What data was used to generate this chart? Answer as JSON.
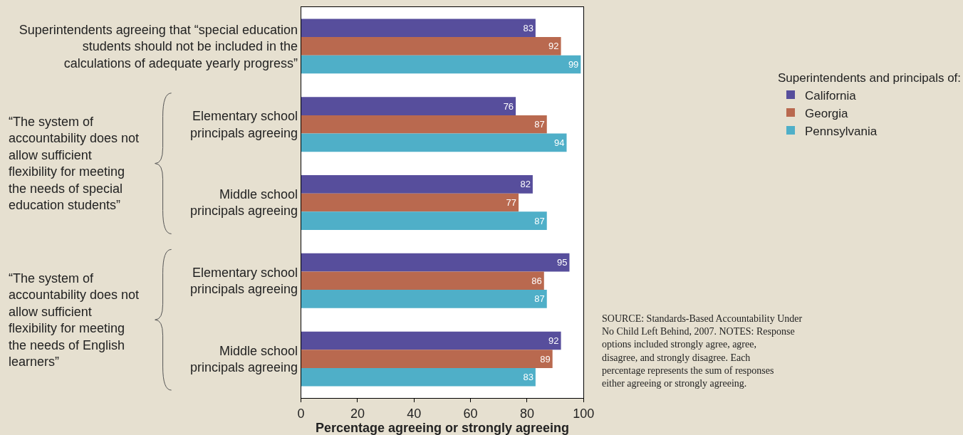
{
  "chart_data": {
    "type": "bar",
    "orientation": "horizontal",
    "xlabel": "Percentage agreeing or strongly agreeing",
    "legend_title": "Superintendents and principals of:",
    "categories": [
      "Superintendents agreeing that “special education students should not be included in the calculations of adequate yearly progress”",
      "Elementary school principals agreeing",
      "Middle school principals agreeing",
      "Elementary school principals agreeing",
      "Middle school principals agreeing"
    ],
    "series": [
      {
        "name": "California",
        "color": "#574e9c",
        "values": [
          83,
          76,
          82,
          95,
          92
        ]
      },
      {
        "name": "Georgia",
        "color": "#b9694f",
        "values": [
          92,
          87,
          77,
          86,
          89
        ]
      },
      {
        "name": "Pennsylvania",
        "color": "#4fafc8",
        "values": [
          99,
          94,
          87,
          87,
          83
        ]
      }
    ],
    "xlim": [
      0,
      100
    ],
    "xticks": [
      0,
      20,
      40,
      60,
      80,
      100
    ],
    "legend": "right",
    "data_labels": true,
    "annotations": [
      "“The system of accountability does not allow sufficient flexibility for meeting the needs of special education students”",
      "“The system of accountability does not allow sufficient flexibility for meeting the needs of English learners”",
      "SOURCE: Standards-Based Accountability Under No Child Left Behind, 2007. NOTES: Response options included strongly agree, agree, disagree, and strongly disagree. Each percentage represents the sum of responses either agreeing or strongly agreeing."
    ]
  }
}
